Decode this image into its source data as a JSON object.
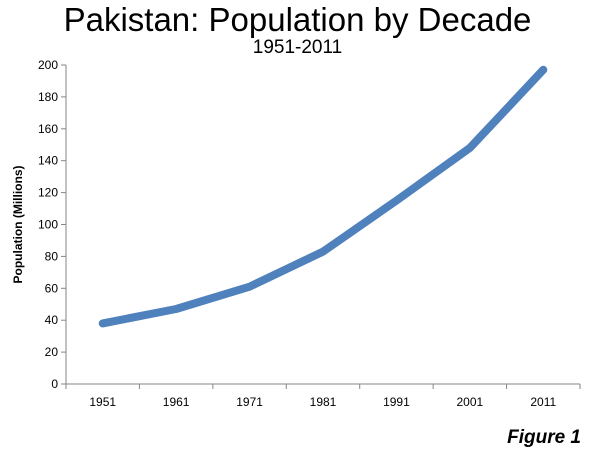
{
  "figure_caption": "Figure 1",
  "chart_data": {
    "type": "line",
    "title": "Pakistan: Population by Decade",
    "subtitle": "1951-2011",
    "xlabel": "",
    "ylabel": "Population (Millions)",
    "categories": [
      "1951",
      "1961",
      "1971",
      "1981",
      "1991",
      "2001",
      "2011"
    ],
    "series": [
      {
        "values": [
          38,
          47,
          61,
          83,
          115,
          148,
          197
        ],
        "color": "#4f81bd"
      }
    ],
    "ylim": [
      0,
      200
    ],
    "yticks": [
      0,
      20,
      40,
      60,
      80,
      100,
      120,
      140,
      160,
      180,
      200
    ],
    "grid": false,
    "legend": "none"
  }
}
